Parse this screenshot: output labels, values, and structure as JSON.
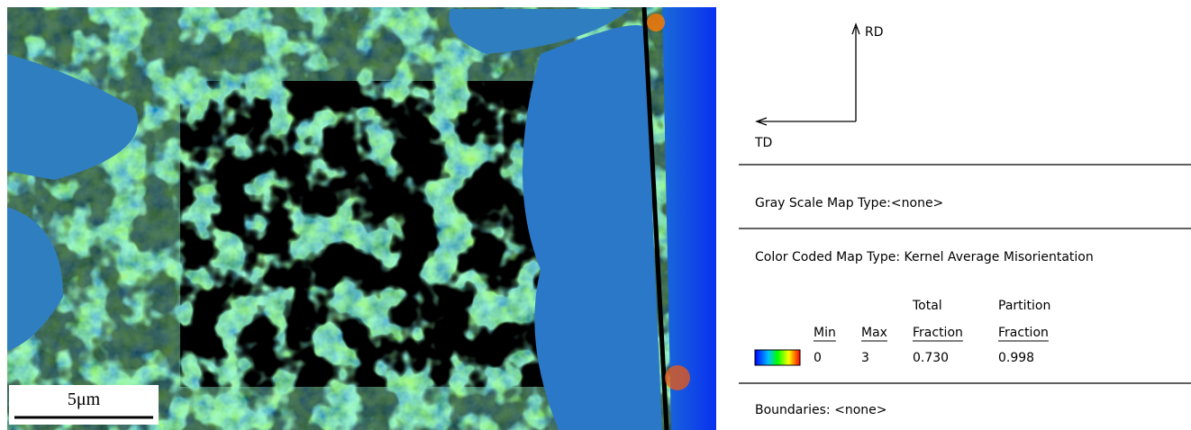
{
  "map": {
    "scale_bar": "5μm"
  },
  "axes": {
    "vertical": "RD",
    "horizontal": "TD"
  },
  "legend": {
    "gray_scale": "Gray Scale Map Type:<none>",
    "color_coded": "Color Coded Map Type: Kernel Average Misorientation",
    "columns": [
      {
        "header": [
          "Min"
        ],
        "value": "0"
      },
      {
        "header": [
          "Max"
        ],
        "value": "3"
      },
      {
        "header": [
          "Total",
          "Fraction"
        ],
        "value": "0.730"
      },
      {
        "header": [
          "Partition",
          "Fraction"
        ],
        "value": "0.998"
      }
    ],
    "boundaries": "Boundaries: <none>"
  }
}
